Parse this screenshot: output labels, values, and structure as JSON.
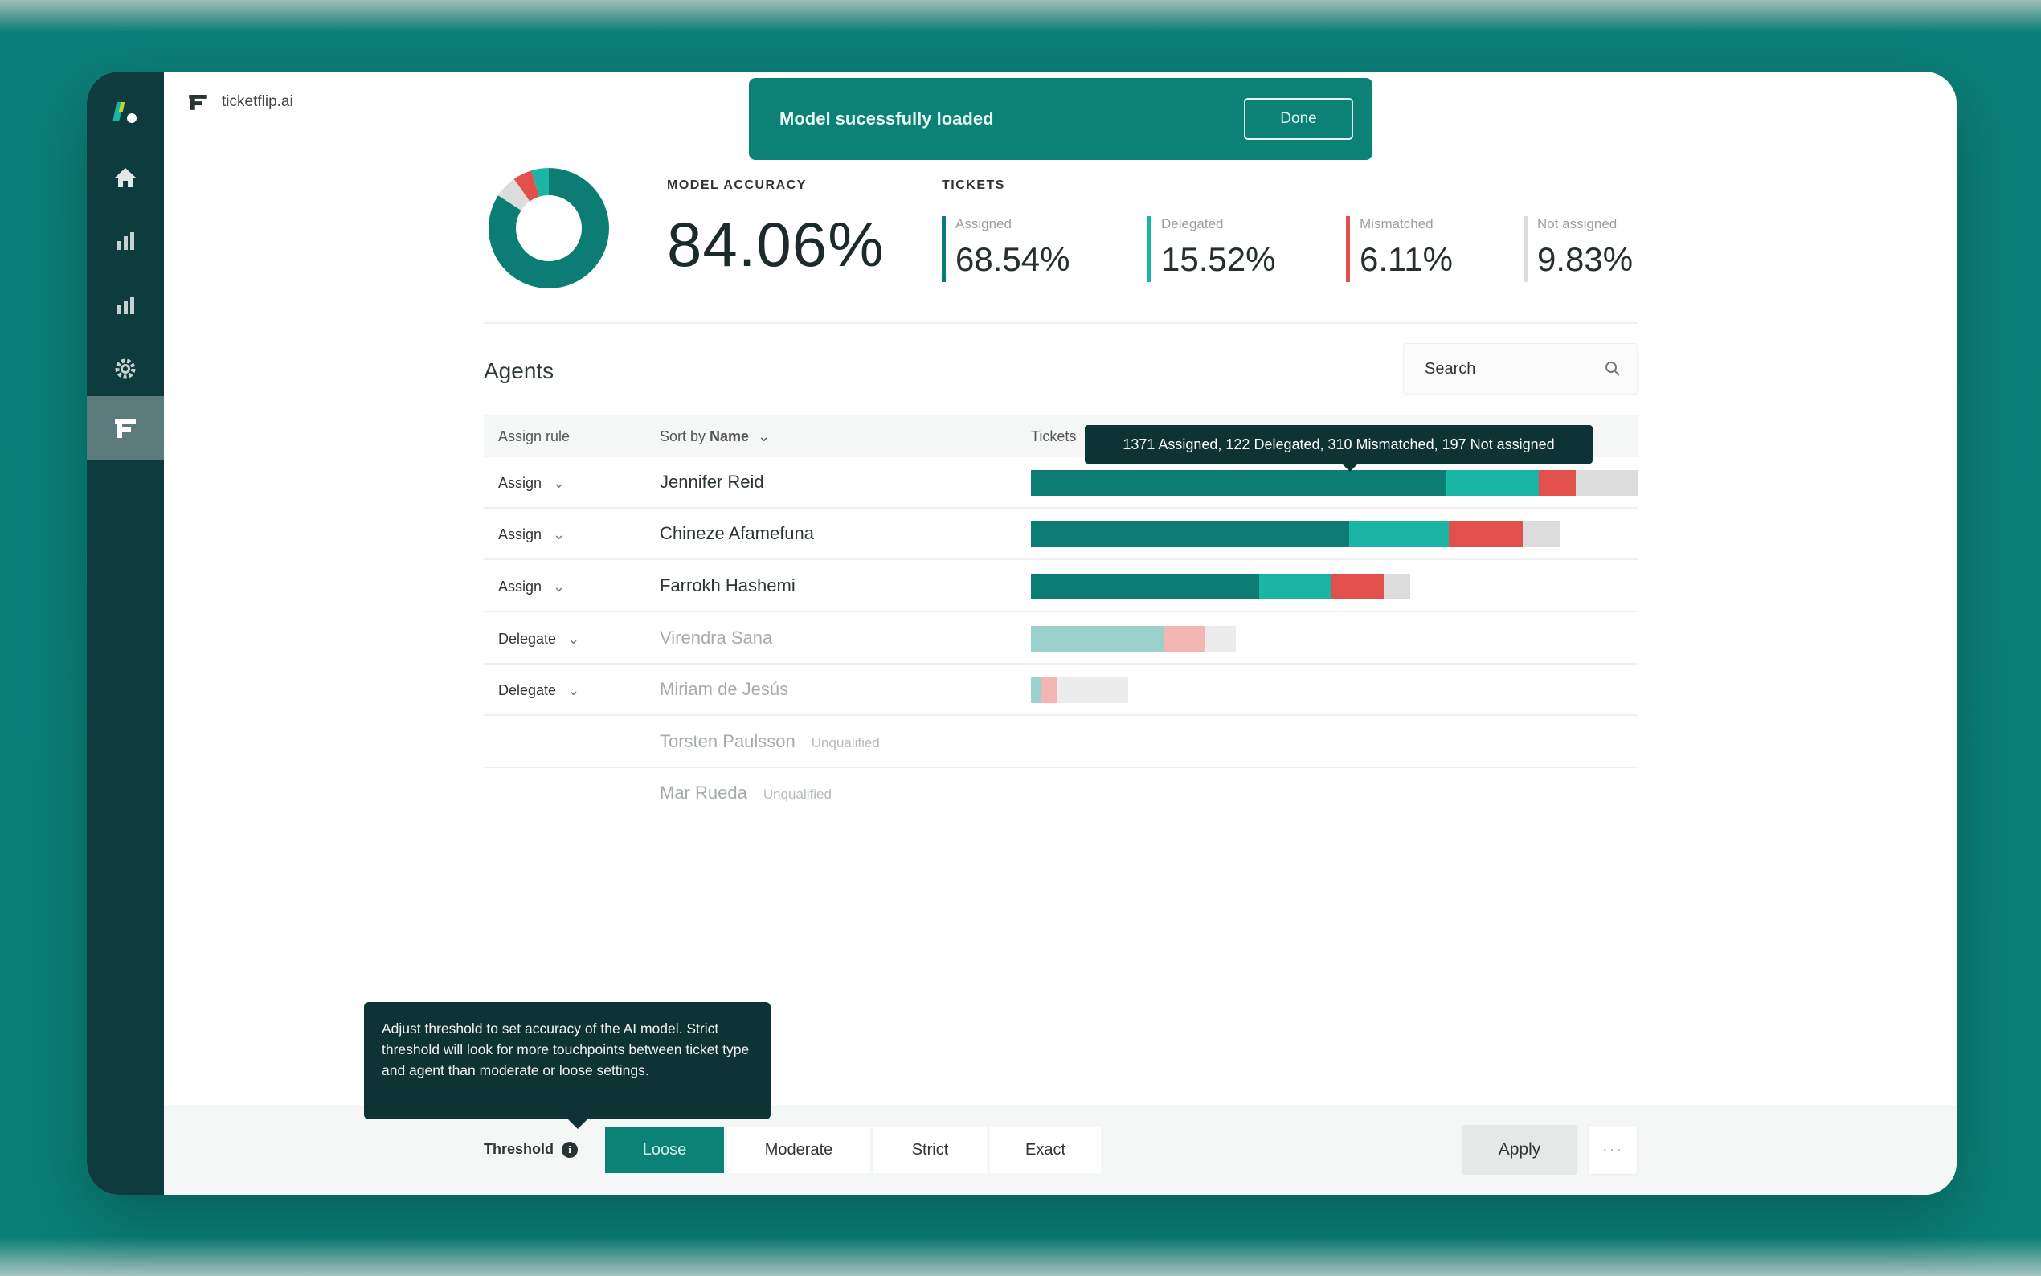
{
  "brand": {
    "name": "ticketflip.ai"
  },
  "toast": {
    "message": "Model sucessfully loaded",
    "button": "Done"
  },
  "model": {
    "label": "MODEL ACCURACY",
    "value": "84.06%"
  },
  "tickets": {
    "label": "TICKETS",
    "stats": [
      {
        "label": "Assigned",
        "value": "68.54%",
        "color": "#0b7d74"
      },
      {
        "label": "Delegated",
        "value": "15.52%",
        "color": "#1ab5a5"
      },
      {
        "label": "Mismatched",
        "value": "6.11%",
        "color": "#e1504a"
      },
      {
        "label": "Not assigned",
        "value": "9.83%",
        "color": "#dcdcdc"
      }
    ]
  },
  "agents": {
    "title": "Agents",
    "search_placeholder": "Search",
    "headers": {
      "assign_rule": "Assign rule",
      "sort_prefix": "Sort by",
      "sort_key": "Name",
      "tickets": "Tickets"
    },
    "tooltip": "1371 Assigned, 122 Delegated, 310 Mismatched, 197 Not assigned",
    "rows": [
      {
        "rule": "Assign",
        "name": "Jennifer Reid",
        "tag": ""
      },
      {
        "rule": "Assign",
        "name": "Chineze Afamefuna",
        "tag": ""
      },
      {
        "rule": "Assign",
        "name": "Farrokh Hashemi",
        "tag": ""
      },
      {
        "rule": "Delegate",
        "name": "Virendra Sana",
        "tag": ""
      },
      {
        "rule": "Delegate",
        "name": "Miriam de Jesús",
        "tag": ""
      },
      {
        "rule": "",
        "name": "Torsten Paulsson",
        "tag": "Unqualified"
      },
      {
        "rule": "",
        "name": "Mar Rueda",
        "tag": "Unqualified"
      }
    ]
  },
  "threshold": {
    "label": "Threshold",
    "tooltip": "Adjust threshold to set accuracy of the AI model. Strict threshold will look for more touchpoints between ticket type and agent than moderate or loose settings.",
    "options": [
      "Loose",
      "Moderate",
      "Strict",
      "Exact"
    ],
    "selected": "Loose"
  },
  "footer": {
    "apply": "Apply",
    "more": "···"
  },
  "colors": {
    "assigned": "#0b7d74",
    "delegated": "#1ab5a5",
    "mismatched": "#e1504a",
    "not_assigned": "#dcdcdc",
    "sidebar": "#0e3b3d"
  },
  "icons": [
    "logo-icon",
    "home-icon",
    "bar-chart-icon",
    "bar-chart-icon",
    "gear-icon",
    "ticketflip-icon",
    "search-icon",
    "chevron-down-icon",
    "info-icon"
  ]
}
